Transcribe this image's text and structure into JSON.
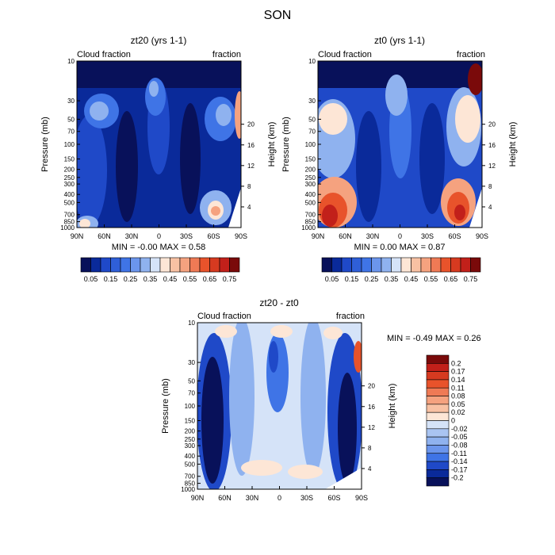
{
  "page_title": "SON",
  "colors": {
    "min": "#08115a",
    "lo1": "#0a2a9a",
    "lo2": "#1f49c8",
    "lo3": "#3f74e6",
    "lo4": "#8fb2ef",
    "lo5": "#d5e3f8",
    "mid": "#fde6d6",
    "hi1": "#f5a27f",
    "hi2": "#e8532b",
    "hi3": "#c2201a",
    "max": "#7a0a0a"
  },
  "chart_data": [
    {
      "type": "heatmap",
      "title": "zt20 (yrs 1-1)",
      "left_label": "Cloud fraction",
      "right_label": "fraction",
      "ylabel": "Pressure (mb)",
      "y2label": "Height (km)",
      "x_ticks": [
        "90N",
        "60N",
        "30N",
        "0",
        "30S",
        "60S",
        "90S"
      ],
      "y_ticks": [
        "10",
        "30",
        "50",
        "70",
        "100",
        "150",
        "200",
        "250",
        "300",
        "400",
        "500",
        "700",
        "850",
        "1000"
      ],
      "y2_ticks": [
        "20",
        "16",
        "12",
        "8",
        "4"
      ],
      "stats": "MIN =   -0.00   MAX =    0.58",
      "colorbar_labels": [
        "0.05",
        "0.15",
        "0.25",
        "0.35",
        "0.45",
        "0.55",
        "0.65",
        "0.75"
      ]
    },
    {
      "type": "heatmap",
      "title": "zt0 (yrs 1-1)",
      "left_label": "Cloud fraction",
      "right_label": "fraction",
      "ylabel": "Pressure (mb)",
      "y2label": "Height (km)",
      "x_ticks": [
        "90N",
        "60N",
        "30N",
        "0",
        "30S",
        "60S",
        "90S"
      ],
      "y_ticks": [
        "10",
        "30",
        "50",
        "70",
        "100",
        "150",
        "200",
        "250",
        "300",
        "400",
        "500",
        "700",
        "850",
        "1000"
      ],
      "y2_ticks": [
        "20",
        "16",
        "12",
        "8",
        "4"
      ],
      "stats": "MIN =    0.00   MAX =    0.87",
      "colorbar_labels": [
        "0.05",
        "0.15",
        "0.25",
        "0.35",
        "0.45",
        "0.55",
        "0.65",
        "0.75"
      ]
    },
    {
      "type": "heatmap",
      "title": "zt20 - zt0",
      "left_label": "Cloud fraction",
      "right_label": "fraction",
      "ylabel": "Pressure (mb)",
      "y2label": "Height (km)",
      "x_ticks": [
        "90N",
        "60N",
        "30N",
        "0",
        "30S",
        "60S",
        "90S"
      ],
      "y_ticks": [
        "10",
        "30",
        "50",
        "70",
        "100",
        "150",
        "200",
        "250",
        "300",
        "400",
        "500",
        "700",
        "850",
        "1000"
      ],
      "y2_ticks": [
        "20",
        "16",
        "12",
        "8",
        "4"
      ],
      "stats": "MIN =   -0.49   MAX =    0.26",
      "colorbar_labels": [
        "0.2",
        "0.17",
        "0.14",
        "0.11",
        "0.08",
        "0.05",
        "0.02",
        "0",
        "-0.02",
        "-0.05",
        "-0.08",
        "-0.11",
        "-0.14",
        "-0.17",
        "-0.2"
      ]
    }
  ]
}
